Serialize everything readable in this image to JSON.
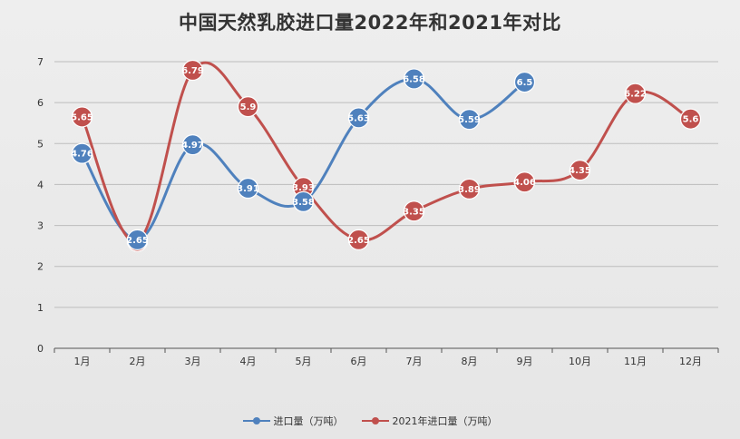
{
  "chart_data": {
    "type": "line",
    "title": "中国天然乳胶进口量2022年和2021年对比",
    "categories": [
      "1月",
      "2月",
      "3月",
      "4月",
      "5月",
      "6月",
      "7月",
      "8月",
      "9月",
      "10月",
      "11月",
      "12月"
    ],
    "ylim": [
      0,
      7
    ],
    "yticks": [
      0,
      1,
      2,
      3,
      4,
      5,
      6,
      7
    ],
    "grid": true,
    "legend_position": "bottom",
    "series": [
      {
        "name": "进口量（万吨）",
        "color": "#4f81bd",
        "values": [
          4.76,
          2.65,
          4.97,
          3.91,
          3.58,
          5.63,
          6.58,
          5.59,
          6.5,
          null,
          null,
          null
        ]
      },
      {
        "name": "2021年进口量（万吨）",
        "color": "#c0504d",
        "values": [
          5.65,
          2.61,
          6.79,
          5.9,
          3.93,
          2.65,
          3.35,
          3.89,
          4.06,
          4.35,
          6.22,
          5.6
        ]
      }
    ]
  }
}
